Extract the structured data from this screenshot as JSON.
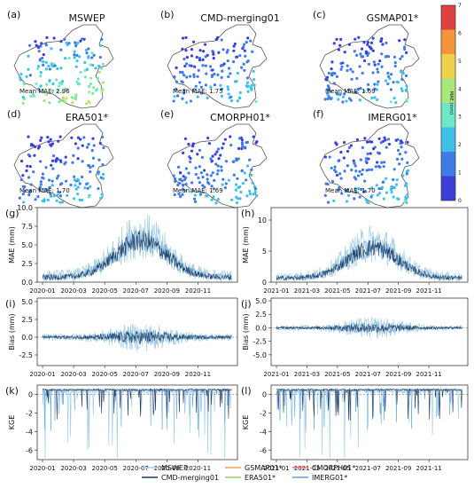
{
  "maps": {
    "panels": [
      {
        "letter": "(a)",
        "title": "MSWEP",
        "mae_text": "Mean MAE: 2.96",
        "mae": 2.96
      },
      {
        "letter": "(b)",
        "title": "CMD-merging01",
        "mae_text": "Mean MAE: 1.75",
        "mae": 1.75
      },
      {
        "letter": "(c)",
        "title": "GSMAP01*",
        "mae_text": "Mean MAE: 1.69",
        "mae": 1.69
      },
      {
        "letter": "(d)",
        "title": "ERA501*",
        "mae_text": "Mean MAE: 1.70",
        "mae": 1.7
      },
      {
        "letter": "(e)",
        "title": "CMORPH01*",
        "mae_text": "Mean MAE: 1.69",
        "mae": 1.69
      },
      {
        "letter": "(f)",
        "title": "IMERG01*",
        "mae_text": "Mean MAE: 1.70",
        "mae": 1.7
      }
    ],
    "colorbar": {
      "label": "MAE (mm)",
      "ticks": [
        "0",
        "1",
        "2",
        "3",
        "4",
        "5",
        "6",
        "7"
      ],
      "colors": [
        "#3b3fd8",
        "#3f7be8",
        "#3fc0e8",
        "#6ee8c8",
        "#a8e87a",
        "#f0d24a",
        "#f5943a",
        "#e04040"
      ]
    }
  },
  "chart_data": [
    {
      "panel": "(g)",
      "type": "line",
      "ylabel": "MAE (mm)",
      "ylim": [
        0,
        10
      ],
      "yticks": [
        "0.0",
        "2.5",
        "5.0",
        "7.5",
        "10.0"
      ],
      "yvals": [
        0,
        2.5,
        5,
        7.5,
        10
      ],
      "xticks": [
        "2020-01",
        "2020-03",
        "2020-05",
        "2020-07",
        "2020-09",
        "2020-11"
      ],
      "year": 2020
    },
    {
      "panel": "(h)",
      "type": "line",
      "ylabel": "MAE (mm)",
      "ylim": [
        0,
        12
      ],
      "yticks": [
        "0",
        "5",
        "10"
      ],
      "yvals": [
        0,
        5,
        10
      ],
      "xticks": [
        "2021-01",
        "2021-03",
        "2021-05",
        "2021-07",
        "2021-09",
        "2021-11"
      ],
      "year": 2021
    },
    {
      "panel": "(i)",
      "type": "line",
      "ylabel": "Bias (mm)",
      "ylim": [
        -4,
        5.5
      ],
      "yticks": [
        "-2.5",
        "0.0",
        "2.5",
        "5.0"
      ],
      "yvals": [
        -2.5,
        0,
        2.5,
        5
      ],
      "xticks": [
        "2020-01",
        "2020-03",
        "2020-05",
        "2020-07",
        "2020-09",
        "2020-11"
      ],
      "year": 2020
    },
    {
      "panel": "(j)",
      "type": "line",
      "ylabel": "Bias (mm)",
      "ylim": [
        -7,
        5.5
      ],
      "yticks": [
        "-5.0",
        "-2.5",
        "0.0",
        "2.5",
        "5.0"
      ],
      "yvals": [
        -5,
        -2.5,
        0,
        2.5,
        5
      ],
      "xticks": [
        "2021-01",
        "2021-03",
        "2021-05",
        "2021-07",
        "2021-09",
        "2021-11"
      ],
      "year": 2021
    },
    {
      "panel": "(k)",
      "type": "line",
      "ylabel": "KGE",
      "ylim": [
        -7,
        1
      ],
      "yticks": [
        "-6",
        "-4",
        "-2",
        "0"
      ],
      "yvals": [
        -6,
        -4,
        -2,
        0
      ],
      "xticks": [
        "2020-01",
        "2020-03",
        "2020-05",
        "2020-07",
        "2020-09",
        "2020-11"
      ],
      "year": 2020
    },
    {
      "panel": "(l)",
      "type": "line",
      "ylabel": "KGE",
      "ylim": [
        -7,
        1
      ],
      "yticks": [
        "-6",
        "-4",
        "-2",
        "0"
      ],
      "yvals": [
        -6,
        -4,
        -2,
        0
      ],
      "xticks": [
        "2021-01",
        "2021-03",
        "2021-05",
        "2021-07",
        "2021-09",
        "2021-11"
      ],
      "year": 2021
    }
  ],
  "legend": {
    "items": [
      {
        "name": "MSWEP",
        "color": "#a6cee3"
      },
      {
        "name": "GSMAP01*",
        "color": "#f2a05a"
      },
      {
        "name": "CMORPH01*",
        "color": "#e8736a"
      },
      {
        "name": "CMD-merging01",
        "color": "#1f3a5f"
      },
      {
        "name": "ERA501*",
        "color": "#8fd06a"
      },
      {
        "name": "IMERG01*",
        "color": "#5aa0d8"
      }
    ]
  }
}
